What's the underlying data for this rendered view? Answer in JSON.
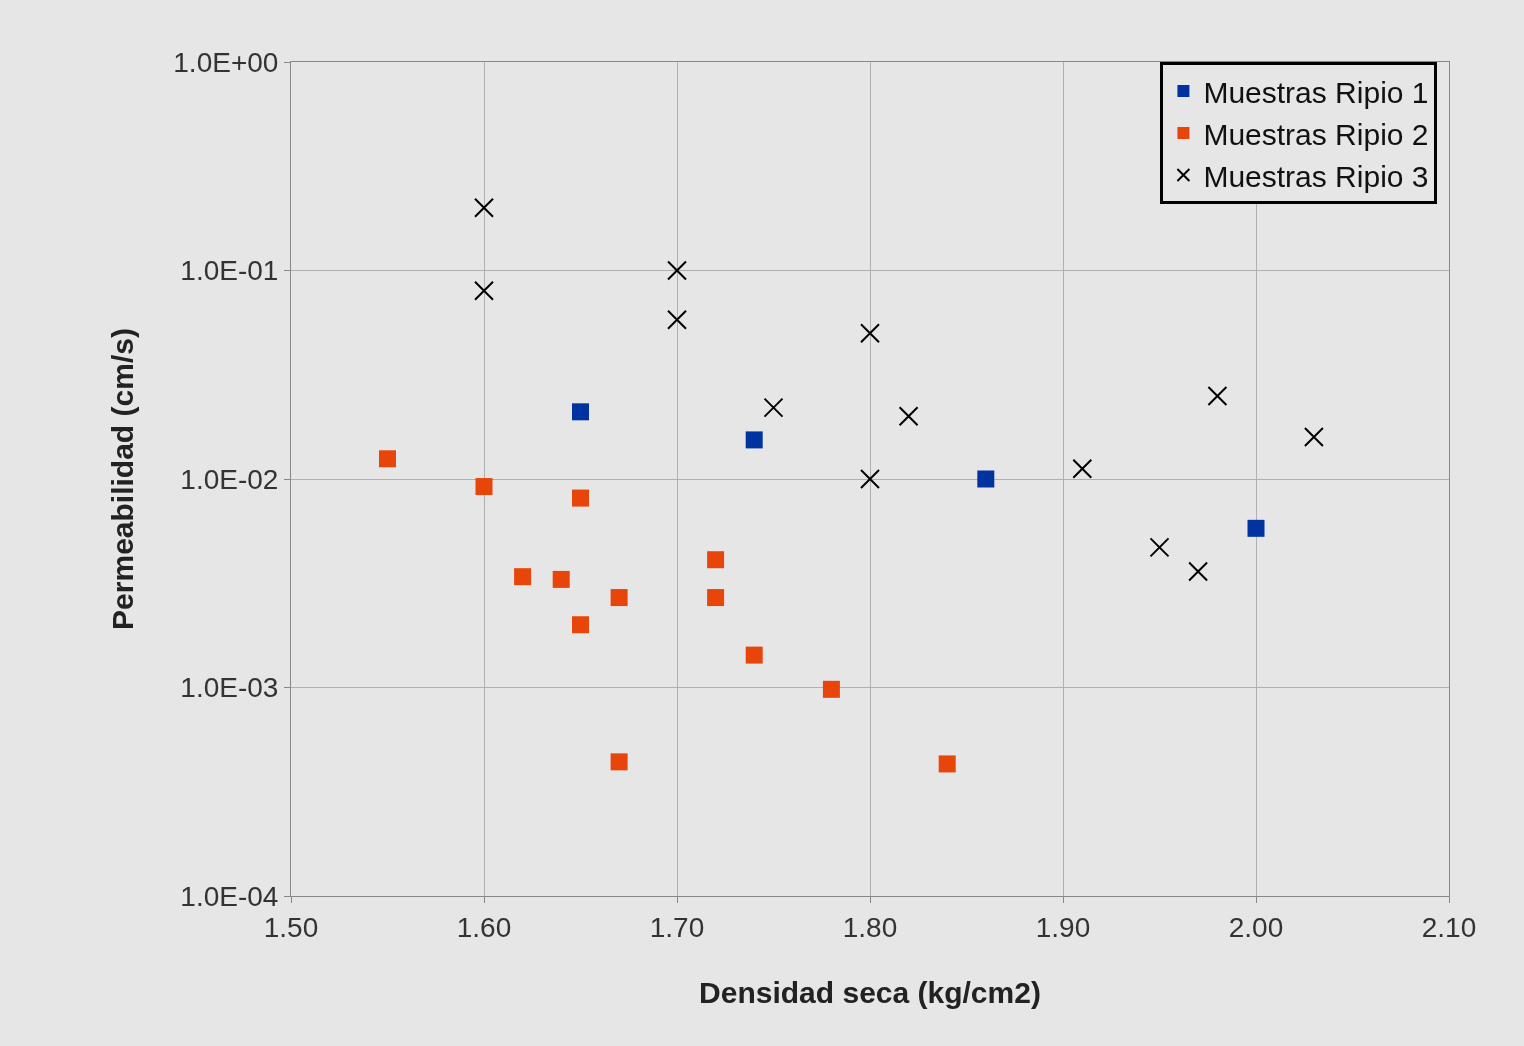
{
  "chart_data": {
    "type": "scatter",
    "xlabel": "Densidad seca (kg/cm2)",
    "ylabel": "Permeabilidad (cm/s)",
    "log": "y",
    "grid": true,
    "legend": "top right",
    "xlim": [
      1.5,
      2.1
    ],
    "xticks": [
      {
        "value": 1.5,
        "label": "1.50"
      },
      {
        "value": 1.6,
        "label": "1.60"
      },
      {
        "value": 1.7,
        "label": "1.70"
      },
      {
        "value": 1.8,
        "label": "1.80"
      },
      {
        "value": 1.9,
        "label": "1.90"
      },
      {
        "value": 2.0,
        "label": "2.00"
      },
      {
        "value": 2.1,
        "label": "2.10"
      }
    ],
    "ylim": [
      0.0001,
      1
    ],
    "yticks": [
      {
        "value": 0.0001,
        "label": "1.0E-04"
      },
      {
        "value": 0.001,
        "label": "1.0E-03"
      },
      {
        "value": 0.01,
        "label": "1.0E-02"
      },
      {
        "value": 0.1,
        "label": "1.0E-01"
      },
      {
        "value": 1,
        "label": "1.0E+00"
      }
    ],
    "series": [
      {
        "name": "Muestras Ripio 1",
        "color": "#0033a0",
        "marker": "square",
        "x": [
          1.65,
          1.74,
          1.86,
          2.0
        ],
        "values": [
          0.021,
          0.0154,
          0.01,
          0.0058
        ]
      },
      {
        "name": "Muestras Ripio 2",
        "color": "#e8450a",
        "marker": "square",
        "x": [
          1.55,
          1.6,
          1.65,
          1.62,
          1.64,
          1.67,
          1.65,
          1.72,
          1.72,
          1.74,
          1.78,
          1.67,
          1.84
        ],
        "values": [
          0.0125,
          0.0092,
          0.0081,
          0.0034,
          0.0033,
          0.0027,
          0.002,
          0.0041,
          0.0027,
          0.00143,
          0.00098,
          0.00044,
          0.00043
        ]
      },
      {
        "name": "Muestras Ripio 3",
        "color": "#000000",
        "marker": "cross",
        "x": [
          1.6,
          1.6,
          1.7,
          1.7,
          1.8,
          1.75,
          1.82,
          1.8,
          1.91,
          1.98,
          2.03,
          1.95,
          1.97
        ],
        "values": [
          0.2,
          0.08,
          0.1,
          0.058,
          0.05,
          0.022,
          0.02,
          0.01,
          0.0112,
          0.025,
          0.0159,
          0.0047,
          0.0036
        ]
      }
    ]
  }
}
